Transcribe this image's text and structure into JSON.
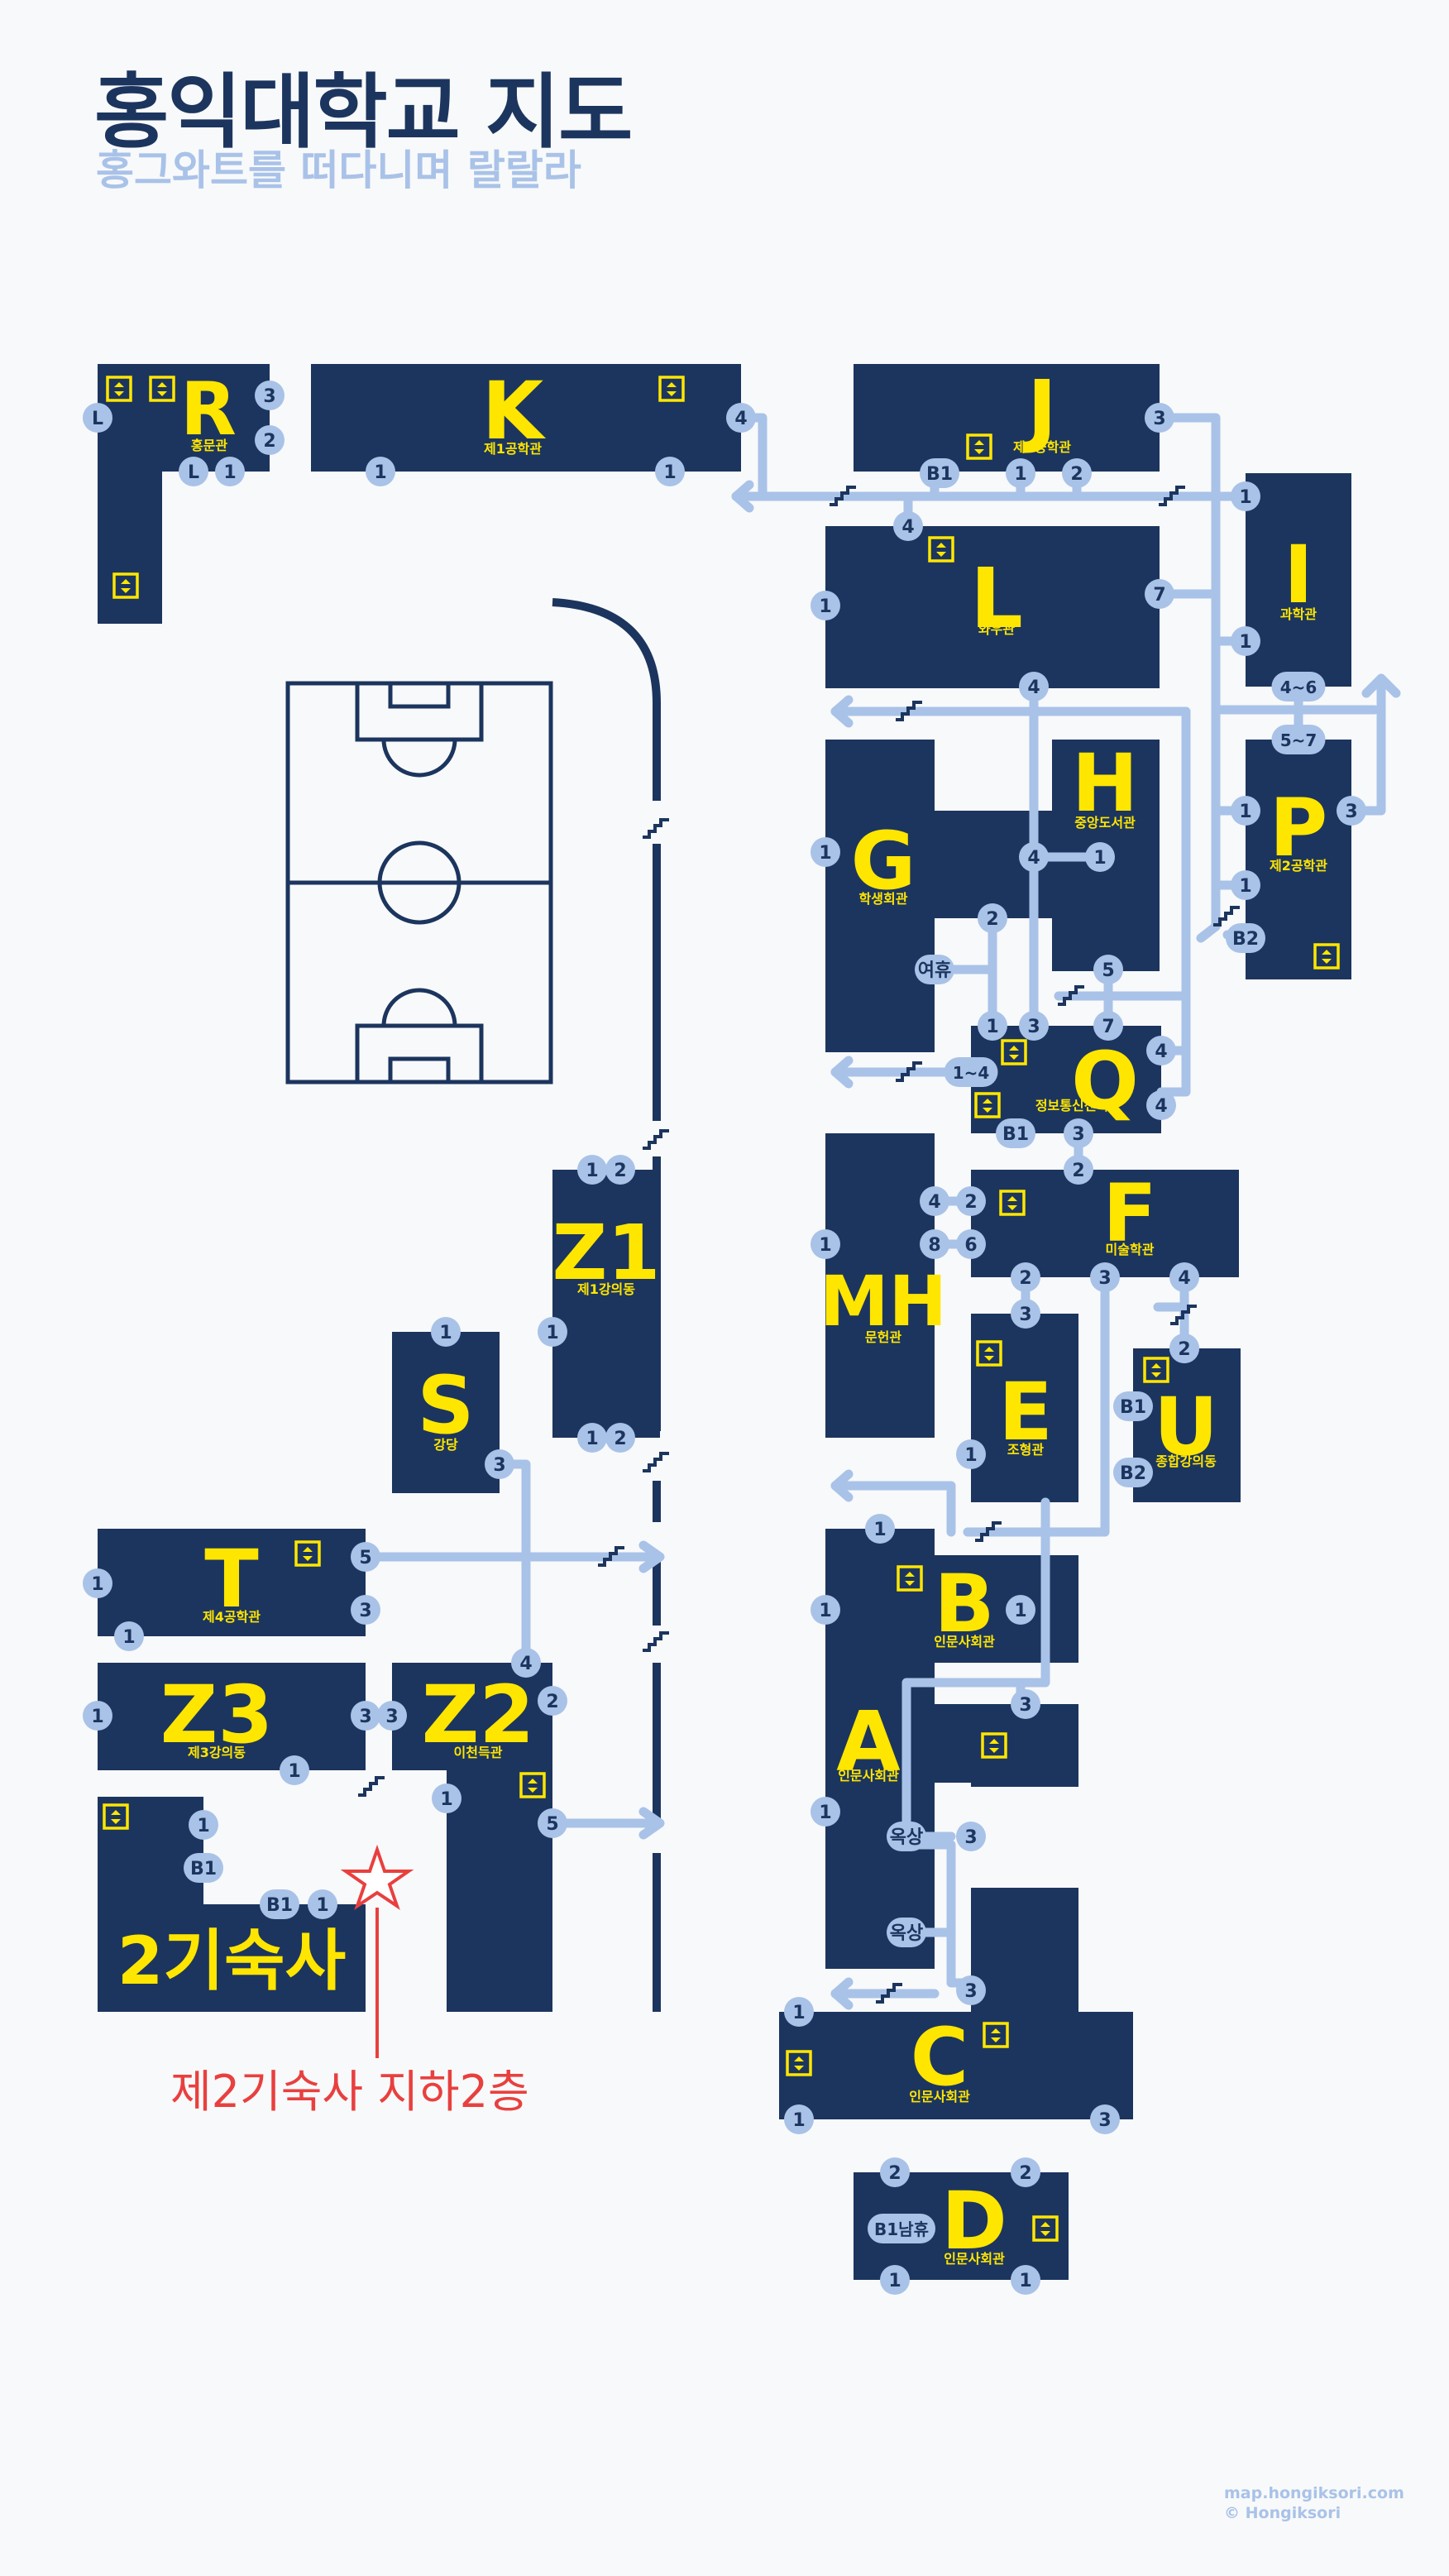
{
  "header": {
    "title": "홍익대학교 지도",
    "subtitle": "홍그와트를 떠다니며 랄랄라"
  },
  "colors": {
    "building": "#1c355e",
    "building_letter": "#ffe600",
    "path": "#a9c2e8",
    "marker_text": "#1c355e",
    "background": "#f8f9fa",
    "annotation": "#e8403f"
  },
  "buildings": {
    "R": {
      "letter": "R",
      "name": "홍문관"
    },
    "K": {
      "letter": "K",
      "name": "제1공학관"
    },
    "J": {
      "letter": "J",
      "name": "제3공학관"
    },
    "L": {
      "letter": "L",
      "name": "와우관"
    },
    "I": {
      "letter": "I",
      "name": "과학관"
    },
    "G": {
      "letter": "G",
      "name": "학생회관"
    },
    "H": {
      "letter": "H",
      "name": "중앙도서관"
    },
    "P": {
      "letter": "P",
      "name": "제2공학관"
    },
    "Q": {
      "letter": "Q",
      "name": "정보통신센터"
    },
    "MH": {
      "letter": "MH",
      "name": "문헌관"
    },
    "F": {
      "letter": "F",
      "name": "미술학관"
    },
    "E": {
      "letter": "E",
      "name": "조형관"
    },
    "U": {
      "letter": "U",
      "name": "종합강의동"
    },
    "Z1": {
      "letter": "Z1",
      "name": "제1강의동"
    },
    "S": {
      "letter": "S",
      "name": "강당"
    },
    "T": {
      "letter": "T",
      "name": "제4공학관"
    },
    "Z3": {
      "letter": "Z3",
      "name": "제3강의동"
    },
    "Z2": {
      "letter": "Z2",
      "name": "이천득관"
    },
    "B": {
      "letter": "B",
      "name": "인문사회관"
    },
    "A": {
      "letter": "A",
      "name": "인문사회관"
    },
    "C": {
      "letter": "C",
      "name": "인문사회관"
    },
    "D": {
      "letter": "D",
      "name": "인문사회관"
    },
    "dorm2": {
      "letter": "2기숙사",
      "name": ""
    }
  },
  "markers": {
    "R_L_left": "L",
    "R_3": "3",
    "R_2": "2",
    "R_L_bottom": "L",
    "R_1": "1",
    "K_4": "4",
    "K_1_left": "1",
    "K_1_right": "1",
    "J_3": "3",
    "J_B1": "B1",
    "J_1": "1",
    "J_2": "2",
    "L_4_top": "4",
    "L_1": "1",
    "L_7": "7",
    "L_4_bottom": "4",
    "I_1_top": "1",
    "I_1_mid": "1",
    "I_4to6": "4~6",
    "I_5to7": "5~7",
    "P_1": "1",
    "P_3": "3",
    "P_1_low": "1",
    "P_B2": "B2",
    "H_1": "1",
    "H_4": "4",
    "G_1": "1",
    "G_2": "2",
    "G_rest": "여휴",
    "Q_1": "1",
    "Q_3": "3",
    "Q_5": "5",
    "Q_7": "7",
    "Q_4_upper": "4",
    "Q_4_lower": "4",
    "Q_1to4": "1~4",
    "Q_B1": "B1",
    "Q_3_bottom": "3",
    "F_2_top": "2",
    "F_4_left": "4",
    "F_2_left": "2",
    "F_8": "8",
    "F_6": "6",
    "F_2_bottom": "2",
    "F_3": "3",
    "F_4_right": "4",
    "MH_1": "1",
    "E_3": "3",
    "E_1": "1",
    "E_2": "2",
    "U_2": "2",
    "U_B1": "B1",
    "U_B2": "B2",
    "Z1_1_top": "1",
    "Z1_2_top": "2",
    "Z1_1": "1",
    "Z1_1_bottom": "1",
    "Z1_2_bottom": "2",
    "S_1": "1",
    "S_3": "3",
    "T_5": "5",
    "T_1_left": "1",
    "T_3": "3",
    "T_1_bottom": "1",
    "Z3_1": "1",
    "Z3_3": "3",
    "Z3_1_bottom": "1",
    "Z2_3": "3",
    "Z2_4": "4",
    "Z2_2": "2",
    "Z2_1": "1",
    "Z2_5": "5",
    "dorm_1": "1",
    "dorm_B1": "B1",
    "dorm_B1_bottom": "B1",
    "dorm_1_bottom": "1",
    "B_1_top": "1",
    "B_1_left": "1",
    "B_1_right": "1",
    "A_3_top": "3",
    "A_1": "1",
    "A_roof_upper": "옥상",
    "A_3_mid": "3",
    "A_roof_lower": "옥상",
    "A_3_bottom": "3",
    "C_1_top": "1",
    "C_1_bottom": "1",
    "C_3": "3",
    "D_2_left": "2",
    "D_2_right": "2",
    "D_B1_restroom": "B1남휴",
    "D_1_left": "1",
    "D_1_right": "1"
  },
  "annotation": {
    "dorm_note": "제2기숙사 지하2층"
  },
  "credits": {
    "site": "map.hongiksori.com",
    "copyright": "© Hongiksori"
  }
}
